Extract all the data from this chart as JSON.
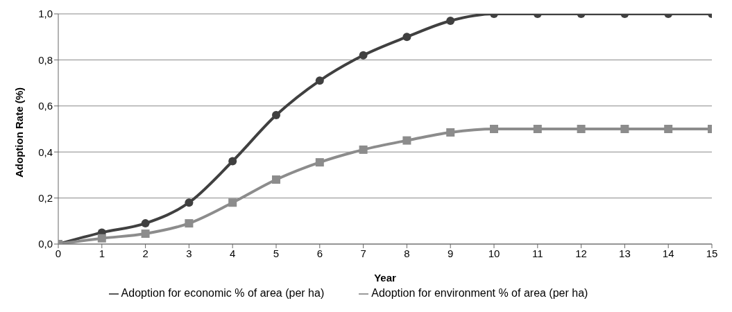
{
  "chart_data": {
    "type": "line",
    "xlabel": "Year",
    "ylabel": "Adoption Rate (%)",
    "x": [
      0,
      1,
      2,
      3,
      4,
      5,
      6,
      7,
      8,
      9,
      10,
      11,
      12,
      13,
      14,
      15
    ],
    "series": [
      {
        "name": "Adoption for economic % of area (per ha)",
        "color": "#404040",
        "marker": "circle",
        "values": [
          0,
          0.05,
          0.09,
          0.18,
          0.36,
          0.56,
          0.71,
          0.82,
          0.9,
          0.97,
          1,
          1,
          1,
          1,
          1,
          1
        ]
      },
      {
        "name": "Adoption for environment % of area (per ha)",
        "color": "#8c8c8c",
        "marker": "square",
        "values": [
          0,
          0.025,
          0.045,
          0.09,
          0.18,
          0.28,
          0.355,
          0.41,
          0.45,
          0.485,
          0.5,
          0.5,
          0.5,
          0.5,
          0.5,
          0.5
        ]
      }
    ],
    "xlim": [
      0,
      15
    ],
    "xticks": [
      0,
      1,
      2,
      3,
      4,
      5,
      6,
      7,
      8,
      9,
      10,
      11,
      12,
      13,
      14,
      15
    ],
    "ylim": [
      0,
      1
    ],
    "yticks": [
      {
        "value": 0,
        "label": "0,0"
      },
      {
        "value": 0.2,
        "label": "0,2"
      },
      {
        "value": 0.4,
        "label": "0,4"
      },
      {
        "value": 0.6,
        "label": "0,6"
      },
      {
        "value": 0.8,
        "label": "0,8"
      },
      {
        "value": 1,
        "label": "1,0"
      }
    ],
    "grid": "y",
    "legend": "bottom",
    "line_style": "solid"
  }
}
